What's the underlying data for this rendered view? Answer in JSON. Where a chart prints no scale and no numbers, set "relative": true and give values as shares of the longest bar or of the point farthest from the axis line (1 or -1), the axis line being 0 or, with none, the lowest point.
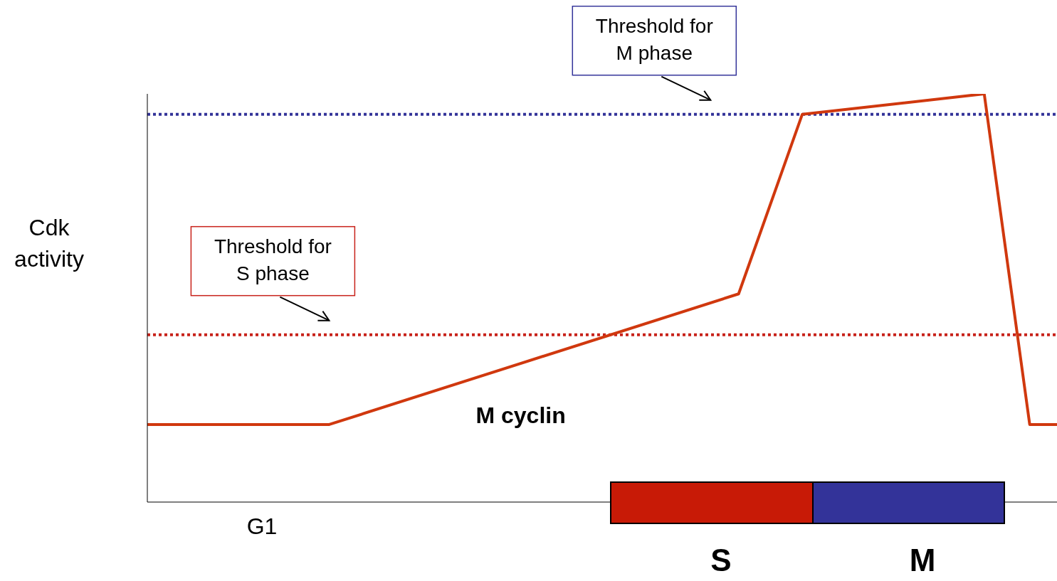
{
  "chart_data": {
    "type": "line",
    "relative": true,
    "ylabel": "Cdk activity",
    "categories": [
      null,
      null,
      null,
      null,
      null,
      null,
      null,
      null,
      null,
      null,
      null,
      null,
      null,
      null,
      null,
      null,
      null,
      null,
      null,
      null,
      null,
      null,
      null,
      null,
      null,
      null,
      null,
      null,
      null,
      null,
      null,
      null,
      null,
      null,
      null,
      null,
      null,
      null,
      null,
      null,
      null,
      null,
      null,
      null,
      null,
      null,
      null,
      null,
      null,
      null,
      null,
      null,
      null,
      null,
      null,
      null,
      null,
      null,
      null,
      null,
      null,
      null,
      null,
      null,
      null,
      null,
      null,
      null,
      null,
      null,
      null,
      null,
      null,
      null,
      null,
      null,
      null,
      null,
      null,
      null,
      null,
      null,
      null,
      null,
      null,
      null,
      null,
      null,
      null,
      null,
      null,
      null,
      null,
      null,
      null,
      null,
      null,
      null,
      null,
      null,
      null
    ],
    "series": [
      {
        "name": "M cyclin",
        "color": "#d0380e",
        "values": [
          0.19,
          null,
          null,
          null,
          null,
          null,
          null,
          null,
          null,
          null,
          null,
          null,
          null,
          null,
          null,
          null,
          null,
          null,
          null,
          null,
          0.19,
          null,
          null,
          null,
          null,
          null,
          null,
          null,
          null,
          null,
          null,
          null,
          null,
          null,
          null,
          null,
          null,
          null,
          null,
          null,
          null,
          null,
          null,
          null,
          null,
          null,
          null,
          null,
          null,
          null,
          null,
          null,
          null,
          null,
          null,
          null,
          null,
          null,
          null,
          null,
          null,
          null,
          null,
          null,
          null,
          0.51,
          null,
          null,
          null,
          null,
          null,
          null,
          0.95,
          null,
          null,
          null,
          null,
          null,
          null,
          null,
          null,
          null,
          null,
          null,
          null,
          null,
          null,
          null,
          null,
          null,
          null,
          null,
          1,
          null,
          null,
          null,
          null,
          0.19,
          null,
          null,
          0.19
        ]
      }
    ],
    "ref_lines": [
      {
        "axis": "y",
        "value": 0.41,
        "label": "Threshold for S phase",
        "color": "#c8221a",
        "line_style": "dotted"
      },
      {
        "axis": "y",
        "value": 0.95,
        "label": "Threshold for M phase",
        "color": "#333399",
        "line_style": "dotted"
      }
    ],
    "annotations": [
      "G1",
      "S",
      "M"
    ],
    "marker": "none",
    "line_style": "solid",
    "legend": false
  }
}
